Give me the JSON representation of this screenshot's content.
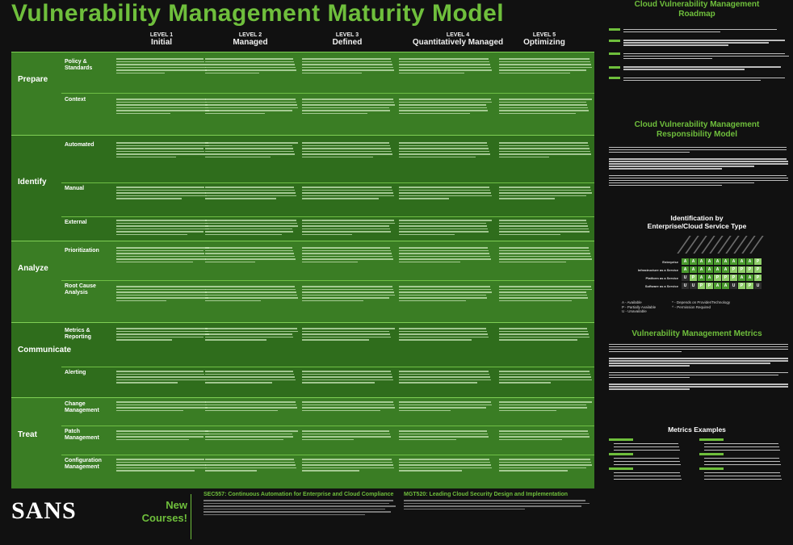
{
  "title": "Vulnerability Management Maturity Model",
  "levels": [
    {
      "num": "LEVEL 1",
      "name": "Initial"
    },
    {
      "num": "LEVEL 2",
      "name": "Managed"
    },
    {
      "num": "LEVEL 3",
      "name": "Defined"
    },
    {
      "num": "LEVEL 4",
      "name": "Quantitatively Managed"
    },
    {
      "num": "LEVEL 5",
      "name": "Optimizing"
    }
  ],
  "phases": [
    {
      "name": "Prepare",
      "subs": [
        "Policy & Standards",
        "Context"
      ]
    },
    {
      "name": "Identify",
      "subs": [
        "Automated",
        "Manual",
        "External"
      ]
    },
    {
      "name": "Analyze",
      "subs": [
        "Prioritization",
        "Root Cause Analysis"
      ]
    },
    {
      "name": "Communicate",
      "subs": [
        "Metrics & Reporting",
        "Alerting"
      ]
    },
    {
      "name": "Treat",
      "subs": [
        "Change Management",
        "Patch Management",
        "Configuration Management"
      ]
    }
  ],
  "right": {
    "roadmap_title_1": "Cloud Vulnerability Management",
    "roadmap_title_2": "Roadmap",
    "resp_title_1": "Cloud Vulnerability Management",
    "resp_title_2": "Responsibility Model",
    "ident_title_1": "Identification by",
    "ident_title_2": "Enterprise/Cloud Service Type",
    "grid_rows": [
      "Enterprise",
      "Infrastructure as a Service",
      "Platform as a Service",
      "Software as a Service"
    ],
    "legend": [
      "A - Available",
      "P - Partially Available",
      "U - Unavailable",
      "* - Depends on Provider/Technology",
      "^ - Permission Required"
    ],
    "metrics_title": "Vulnerability Management Metrics",
    "examples_title": "Metrics Examples"
  },
  "bottom": {
    "brand": "SANS",
    "new_courses": "New Courses!",
    "course1_title": "SEC557: Continuous Automation for Enterprise and Cloud Compliance",
    "course2_title": "MGT520: Leading Cloud Security Design and Implementation"
  }
}
